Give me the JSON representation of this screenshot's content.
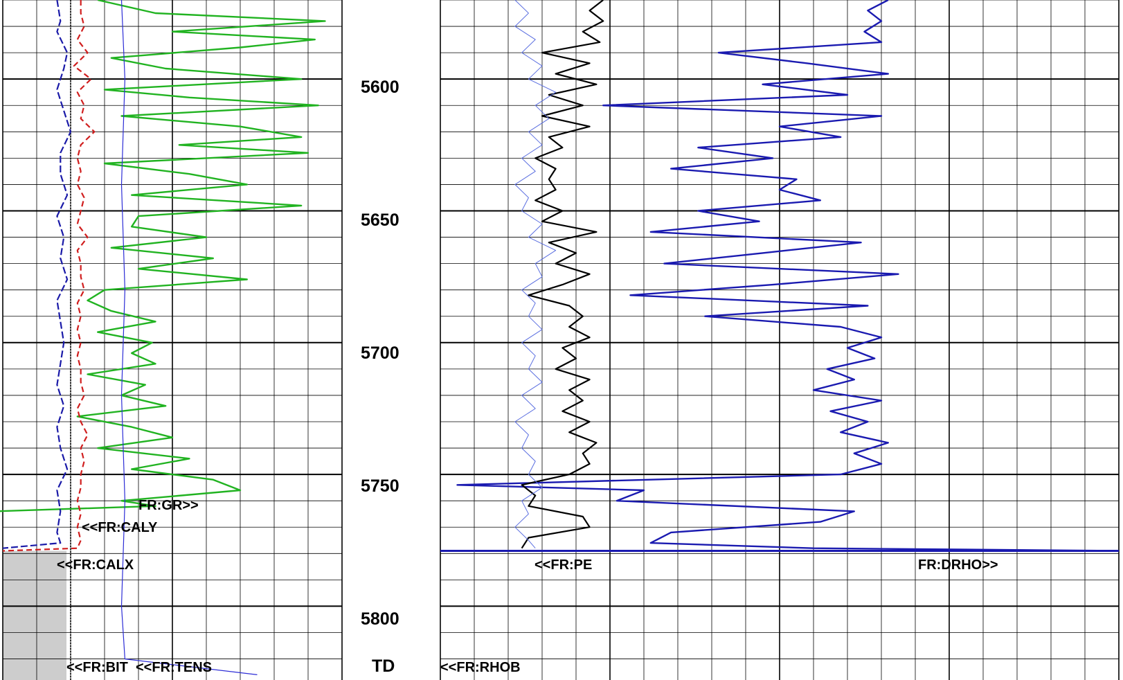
{
  "chart_data": {
    "type": "line",
    "description_note": "",
    "depth_axis": {
      "range": [
        5570,
        5828
      ],
      "major_ticks": [
        5600,
        5650,
        5700,
        5750,
        5800
      ],
      "tick_labels": [
        "5600",
        "5650",
        "5700",
        "5750",
        "5800"
      ],
      "terminal_label": "TD"
    },
    "colors": {
      "grid": "#000000",
      "gr": "#21b321",
      "calx": "#1a1aa8",
      "caly": "#d01e1e",
      "tens": "#2c2cd6",
      "bit": "#000000",
      "pe": "#000000",
      "rhob": "#1a1ab0",
      "drho": "#5a6ee0",
      "fill": "#c8c8c8"
    },
    "curve_labels": {
      "gr": "FR:GR>>",
      "caly": "<<FR:CALY",
      "calx": "<<FR:CALX",
      "bit": "<<FR:BIT",
      "tens": "<<FR:TENS",
      "pe": "<<FR:PE",
      "drho": "FR:DRHO>>",
      "rhob": "<<FR:RHOB"
    },
    "series": [
      {
        "name": "FR:GR",
        "depth": [
          5570,
          5575,
          5578,
          5582,
          5585,
          5588,
          5592,
          5596,
          5600,
          5604,
          5607,
          5610,
          5614,
          5618,
          5622,
          5625,
          5628,
          5632,
          5636,
          5640,
          5644,
          5648,
          5652,
          5656,
          5660,
          5664,
          5668,
          5672,
          5676,
          5680,
          5684,
          5688,
          5692,
          5696,
          5700,
          5704,
          5708,
          5712,
          5716,
          5720,
          5724,
          5728,
          5732,
          5736,
          5740,
          5744,
          5748,
          5752,
          5756,
          5760,
          5762,
          5764,
          5766,
          5770,
          5778,
          5780
        ],
        "values": [
          28,
          45,
          95,
          50,
          92,
          70,
          32,
          48,
          88,
          30,
          55,
          93,
          35,
          70,
          88,
          52,
          90,
          30,
          55,
          72,
          38,
          88,
          40,
          38,
          60,
          32,
          62,
          40,
          72,
          30,
          25,
          32,
          45,
          28,
          44,
          38,
          45,
          25,
          42,
          35,
          48,
          22,
          38,
          50,
          28,
          55,
          38,
          62,
          70,
          35,
          45,
          -2,
          -2,
          -2,
          -2,
          -2
        ]
      },
      {
        "name": "FR:CALX",
        "depth": [
          5570,
          5578,
          5582,
          5590,
          5596,
          5604,
          5612,
          5620,
          5628,
          5636,
          5644,
          5652,
          5660,
          5668,
          5676,
          5684,
          5692,
          5700,
          5708,
          5716,
          5724,
          5732,
          5740,
          5748,
          5756,
          5764,
          5772,
          5776,
          5778
        ],
        "values": [
          1.6,
          1.7,
          1.6,
          1.9,
          1.8,
          1.6,
          1.8,
          2.0,
          1.7,
          1.7,
          1.9,
          1.6,
          1.8,
          1.7,
          1.9,
          1.6,
          1.7,
          1.8,
          1.7,
          1.6,
          1.8,
          1.6,
          1.7,
          1.9,
          1.6,
          1.7,
          1.6,
          1.7,
          0
        ]
      },
      {
        "name": "FR:CALY",
        "depth": [
          5570,
          5575,
          5580,
          5585,
          5590,
          5595,
          5600,
          5605,
          5610,
          5615,
          5620,
          5625,
          5630,
          5635,
          5640,
          5645,
          5650,
          5655,
          5660,
          5665,
          5670,
          5675,
          5680,
          5685,
          5690,
          5695,
          5700,
          5705,
          5710,
          5715,
          5720,
          5725,
          5730,
          5735,
          5740,
          5745,
          5750,
          5755,
          5760,
          5765,
          5770,
          5775,
          5778,
          5779
        ],
        "values": [
          2.3,
          2.3,
          2.4,
          2.2,
          2.5,
          2.1,
          2.6,
          2.2,
          2.4,
          2.3,
          2.7,
          2.3,
          2.2,
          2.3,
          2.2,
          2.4,
          2.3,
          2.2,
          2.5,
          2.2,
          2.3,
          2.3,
          2.4,
          2.2,
          2.3,
          2.2,
          2.3,
          2.2,
          2.3,
          2.3,
          2.4,
          2.2,
          2.3,
          2.5,
          2.3,
          2.4,
          2.3,
          2.3,
          2.2,
          2.3,
          2.2,
          2.3,
          2.2,
          0
        ]
      },
      {
        "name": "FR:BIT",
        "depth": [
          5570,
          5828
        ],
        "values": [
          2.0,
          2.0
        ]
      },
      {
        "name": "FR:TENS",
        "depth": [
          5570,
          5600,
          5640,
          5680,
          5720,
          5760,
          5800,
          5820,
          5826
        ],
        "values": [
          3.5,
          3.6,
          3.5,
          3.6,
          3.5,
          3.6,
          3.5,
          3.6,
          7.5
        ]
      },
      {
        "name": "FR:PE",
        "depth": [
          5570,
          5574,
          5578,
          5582,
          5586,
          5590,
          5594,
          5598,
          5602,
          5606,
          5610,
          5614,
          5618,
          5622,
          5626,
          5630,
          5634,
          5638,
          5642,
          5646,
          5650,
          5654,
          5658,
          5662,
          5666,
          5670,
          5674,
          5678,
          5682,
          5686,
          5690,
          5694,
          5698,
          5702,
          5706,
          5710,
          5714,
          5718,
          5722,
          5726,
          5730,
          5734,
          5738,
          5742,
          5746,
          5750,
          5754,
          5758,
          5762,
          5766,
          5770,
          5774,
          5778
        ],
        "values": [
          4.8,
          4.4,
          4.8,
          4.2,
          4.7,
          3.0,
          4.4,
          3.4,
          4.6,
          3.2,
          4.2,
          3.0,
          4.4,
          3.2,
          3.6,
          2.8,
          3.4,
          3.2,
          3.4,
          2.8,
          3.6,
          3.0,
          4.6,
          3.2,
          4.0,
          3.4,
          4.4,
          3.6,
          2.6,
          3.8,
          4.2,
          3.8,
          4.4,
          3.6,
          4.0,
          3.4,
          4.4,
          3.8,
          4.2,
          3.6,
          4.4,
          3.8,
          4.6,
          4.2,
          4.4,
          3.8,
          2.4,
          2.8,
          2.6,
          4.2,
          4.4,
          2.6,
          2.4
        ]
      },
      {
        "name": "FR:RHOB",
        "depth": [
          5570,
          5574,
          5578,
          5582,
          5586,
          5590,
          5594,
          5598,
          5602,
          5606,
          5610,
          5614,
          5618,
          5622,
          5626,
          5630,
          5634,
          5638,
          5642,
          5646,
          5650,
          5654,
          5658,
          5662,
          5666,
          5670,
          5674,
          5678,
          5682,
          5686,
          5690,
          5694,
          5698,
          5702,
          5706,
          5710,
          5714,
          5718,
          5722,
          5726,
          5730,
          5734,
          5738,
          5742,
          5746,
          5750,
          5754,
          5756,
          5760,
          5764,
          5768,
          5772,
          5776,
          5778,
          5779
        ],
        "values": [
          13.2,
          12.6,
          13.0,
          12.5,
          13.0,
          8.2,
          10.8,
          13.2,
          9.5,
          12.0,
          4.8,
          13.0,
          10.0,
          11.8,
          7.6,
          9.8,
          6.8,
          10.5,
          10.0,
          11.2,
          7.6,
          9.4,
          6.2,
          12.4,
          9.5,
          6.6,
          13.5,
          9.8,
          5.6,
          12.6,
          7.8,
          11.8,
          13.0,
          12.0,
          12.8,
          11.4,
          12.2,
          11.0,
          13.0,
          11.5,
          12.6,
          11.8,
          13.2,
          12.2,
          13.0,
          11.8,
          0.5,
          6.0,
          5.2,
          12.2,
          11.2,
          6.8,
          6.2,
          11.0,
          20.0
        ]
      },
      {
        "name": "FR:DRHO",
        "depth": [
          5570,
          5575,
          5580,
          5585,
          5590,
          5595,
          5600,
          5605,
          5610,
          5615,
          5620,
          5625,
          5630,
          5635,
          5640,
          5645,
          5650,
          5655,
          5660,
          5665,
          5670,
          5675,
          5680,
          5685,
          5690,
          5695,
          5700,
          5705,
          5710,
          5715,
          5720,
          5725,
          5730,
          5735,
          5740,
          5745,
          5750,
          5755,
          5760,
          5765,
          5770,
          5775,
          5778
        ],
        "values": [
          2.2,
          2.6,
          2.2,
          2.8,
          2.4,
          3.0,
          2.6,
          3.4,
          2.8,
          3.2,
          2.6,
          3.0,
          2.4,
          2.8,
          2.2,
          2.6,
          2.4,
          3.0,
          2.6,
          3.4,
          2.8,
          3.0,
          2.4,
          2.8,
          2.6,
          3.0,
          2.4,
          2.8,
          2.6,
          3.0,
          2.4,
          2.8,
          2.2,
          2.6,
          2.4,
          2.8,
          2.6,
          3.0,
          2.4,
          2.6,
          2.2,
          2.6,
          2.8
        ]
      }
    ]
  }
}
